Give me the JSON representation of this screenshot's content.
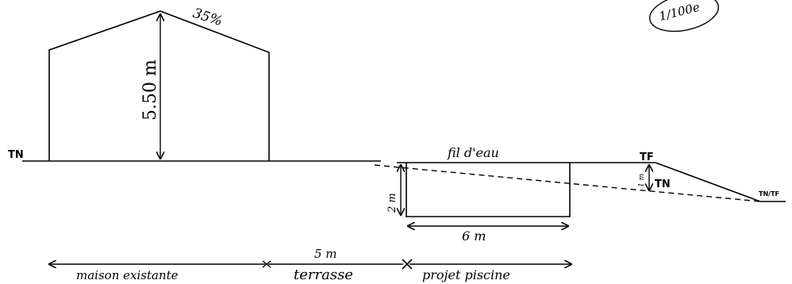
{
  "scale_label": "1/100e",
  "house": {
    "roof_slope": "35%",
    "height": "5.50 m"
  },
  "terrain": {
    "tn_left": "TN",
    "tf": "TF",
    "tn_right": "TN",
    "tn_tf": "TN/TF",
    "one_m": "1 m"
  },
  "pool": {
    "water_line": "fil d'eau",
    "depth": "2 m",
    "length": "6 m"
  },
  "bottom": {
    "terrace_width": "5 m",
    "maison": "maison existante",
    "terrasse": "terrasse",
    "piscine": "projet piscine"
  }
}
